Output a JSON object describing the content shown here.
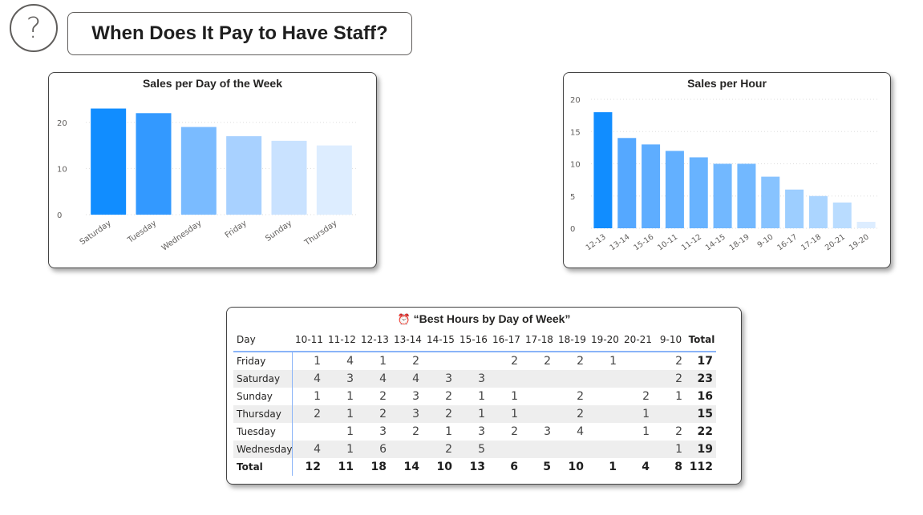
{
  "header": {
    "help_icon": "?",
    "title": "When Does It Pay to Have Staff?"
  },
  "chart_data": [
    {
      "type": "bar",
      "title": "Sales per Day of the Week",
      "categories": [
        "Saturday",
        "Tuesday",
        "Wednesday",
        "Friday",
        "Sunday",
        "Thursday"
      ],
      "values": [
        23,
        22,
        19,
        17,
        16,
        15
      ],
      "ylim": [
        0,
        25
      ],
      "yticks": [
        0,
        10,
        20
      ],
      "grid": true,
      "colors": [
        "#118DFF",
        "#3399FF",
        "#7ABBFF",
        "#A8D1FF",
        "#C9E2FF",
        "#DDEDFF"
      ]
    },
    {
      "type": "bar",
      "title": "Sales per Hour",
      "categories": [
        "12-13",
        "13-14",
        "15-16",
        "10-11",
        "11-12",
        "14-15",
        "18-19",
        "9-10",
        "16-17",
        "17-18",
        "20-21",
        "19-20"
      ],
      "values": [
        18,
        14,
        13,
        12,
        11,
        10,
        10,
        8,
        6,
        5,
        4,
        1
      ],
      "ylim": [
        0,
        20
      ],
      "yticks": [
        0,
        5,
        10,
        15,
        20
      ],
      "grid": true,
      "colors": [
        "#118DFF",
        "#55A8FF",
        "#5EADFF",
        "#63B0FF",
        "#68B3FF",
        "#72B8FF",
        "#72B8FF",
        "#87C3FF",
        "#9DCEFF",
        "#ABD5FF",
        "#B9DCFF",
        "#DDEDFF"
      ]
    }
  ],
  "table": {
    "icon": "⏰",
    "title": "“Best Hours by Day of Week”",
    "day_header": "Day",
    "columns": [
      "10-11",
      "11-12",
      "12-13",
      "13-14",
      "14-15",
      "15-16",
      "16-17",
      "17-18",
      "18-19",
      "19-20",
      "20-21",
      "9-10"
    ],
    "total_header": "Total",
    "rows": [
      {
        "day": "Friday",
        "values": [
          "1",
          "4",
          "1",
          "2",
          "",
          "",
          "2",
          "2",
          "2",
          "1",
          "",
          "2"
        ],
        "total": "17"
      },
      {
        "day": "Saturday",
        "values": [
          "4",
          "3",
          "4",
          "4",
          "3",
          "3",
          "",
          "",
          "",
          "",
          "",
          "2"
        ],
        "total": "23"
      },
      {
        "day": "Sunday",
        "values": [
          "1",
          "1",
          "2",
          "3",
          "2",
          "1",
          "1",
          "",
          "2",
          "",
          "2",
          "1"
        ],
        "total": "16"
      },
      {
        "day": "Thursday",
        "values": [
          "2",
          "1",
          "2",
          "3",
          "2",
          "1",
          "1",
          "",
          "2",
          "",
          "1",
          ""
        ],
        "total": "15"
      },
      {
        "day": "Tuesday",
        "values": [
          "",
          "1",
          "3",
          "2",
          "1",
          "3",
          "2",
          "3",
          "4",
          "",
          "1",
          "2"
        ],
        "total": "22"
      },
      {
        "day": "Wednesday",
        "values": [
          "4",
          "1",
          "6",
          "",
          "2",
          "5",
          "",
          "",
          "",
          "",
          "",
          "1"
        ],
        "total": "19"
      }
    ],
    "total_row": {
      "label": "Total",
      "values": [
        "12",
        "11",
        "18",
        "14",
        "10",
        "13",
        "6",
        "5",
        "10",
        "1",
        "4",
        "8"
      ],
      "total": "112"
    }
  }
}
